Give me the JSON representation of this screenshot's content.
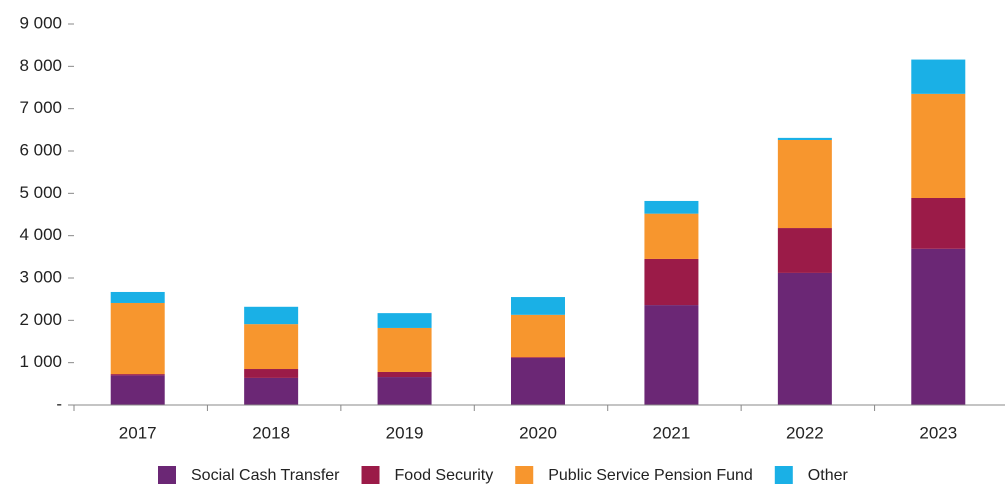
{
  "chart_data": {
    "type": "stacked_bar",
    "categories": [
      "2017",
      "2018",
      "2019",
      "2020",
      "2021",
      "2022",
      "2023"
    ],
    "series": [
      {
        "name": "Social Cash Transfer",
        "color": "#6b2775",
        "values": [
          700,
          640,
          660,
          1110,
          2360,
          3120,
          3690
        ]
      },
      {
        "name": "Food Security",
        "color": "#9b1b48",
        "values": [
          30,
          210,
          120,
          20,
          1090,
          1060,
          1200
        ]
      },
      {
        "name": "Public Service Pension Fund",
        "color": "#f7962e",
        "values": [
          1680,
          1060,
          1040,
          1000,
          1070,
          2080,
          2460
        ]
      },
      {
        "name": "Other",
        "color": "#1ab0e6",
        "values": [
          260,
          410,
          350,
          420,
          300,
          50,
          810
        ]
      }
    ],
    "ylim": [
      0,
      9000
    ],
    "yticks": [
      {
        "value": 0,
        "label": "-"
      },
      {
        "value": 1000,
        "label": "1 000"
      },
      {
        "value": 2000,
        "label": "2 000"
      },
      {
        "value": 3000,
        "label": "3 000"
      },
      {
        "value": 4000,
        "label": "4 000"
      },
      {
        "value": 5000,
        "label": "5 000"
      },
      {
        "value": 6000,
        "label": "6 000"
      },
      {
        "value": 7000,
        "label": "7 000"
      },
      {
        "value": 8000,
        "label": "8 000"
      },
      {
        "value": 9000,
        "label": "9 000"
      }
    ],
    "grid": false
  }
}
